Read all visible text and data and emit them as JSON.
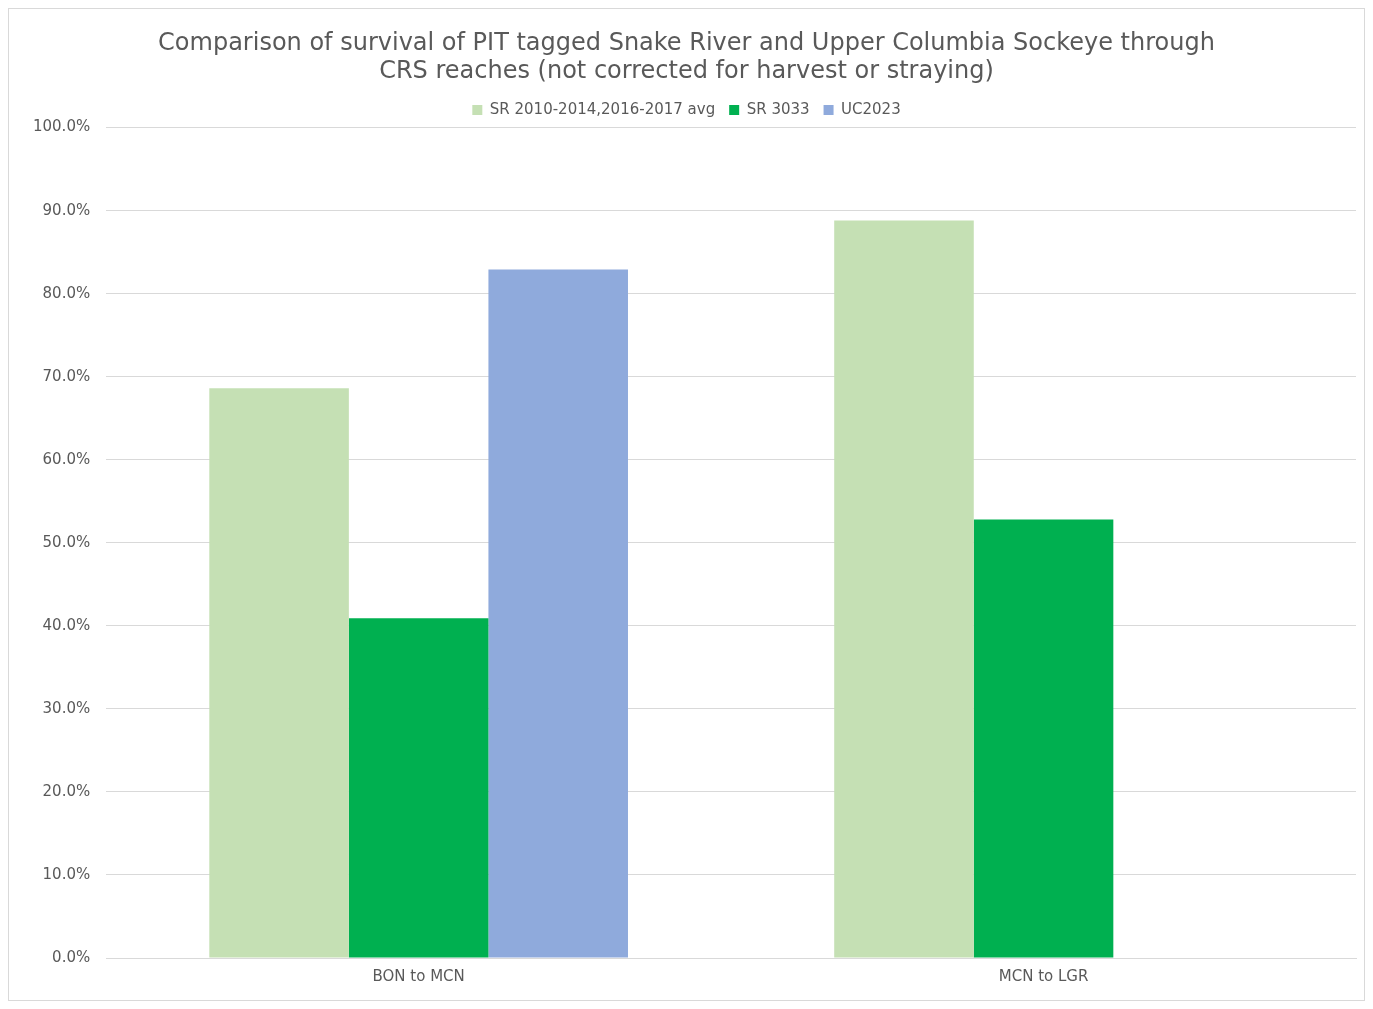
{
  "chart_data": {
    "type": "bar",
    "title": "Comparison of survival of PIT tagged Snake River and Upper Columbia Sockeye through CRS reaches (not corrected for harvest or straying)",
    "categories": [
      "BON to MCN",
      "MCN to LGR"
    ],
    "series": [
      {
        "name": "SR 2010-2014,2016-2017 avg",
        "color": "#c5e0b4",
        "values": [
          68.6,
          88.8
        ]
      },
      {
        "name": "SR 3033",
        "color": "#00b050",
        "values": [
          40.9,
          52.8
        ]
      },
      {
        "name": "UC2023",
        "color": "#8faadc",
        "values": [
          82.9,
          null
        ]
      }
    ],
    "ylim": [
      0,
      100
    ],
    "yticks": [
      {
        "value": 0,
        "label": "0.0%"
      },
      {
        "value": 10,
        "label": "10.0%"
      },
      {
        "value": 20,
        "label": "20.0%"
      },
      {
        "value": 30,
        "label": "30.0%"
      },
      {
        "value": 40,
        "label": "40.0%"
      },
      {
        "value": 50,
        "label": "50.0%"
      },
      {
        "value": 60,
        "label": "60.0%"
      },
      {
        "value": 70,
        "label": "70.0%"
      },
      {
        "value": 80,
        "label": "80.0%"
      },
      {
        "value": 90,
        "label": "90.0%"
      },
      {
        "value": 100,
        "label": "100.0%"
      }
    ],
    "grid": "y",
    "legend": "top"
  }
}
